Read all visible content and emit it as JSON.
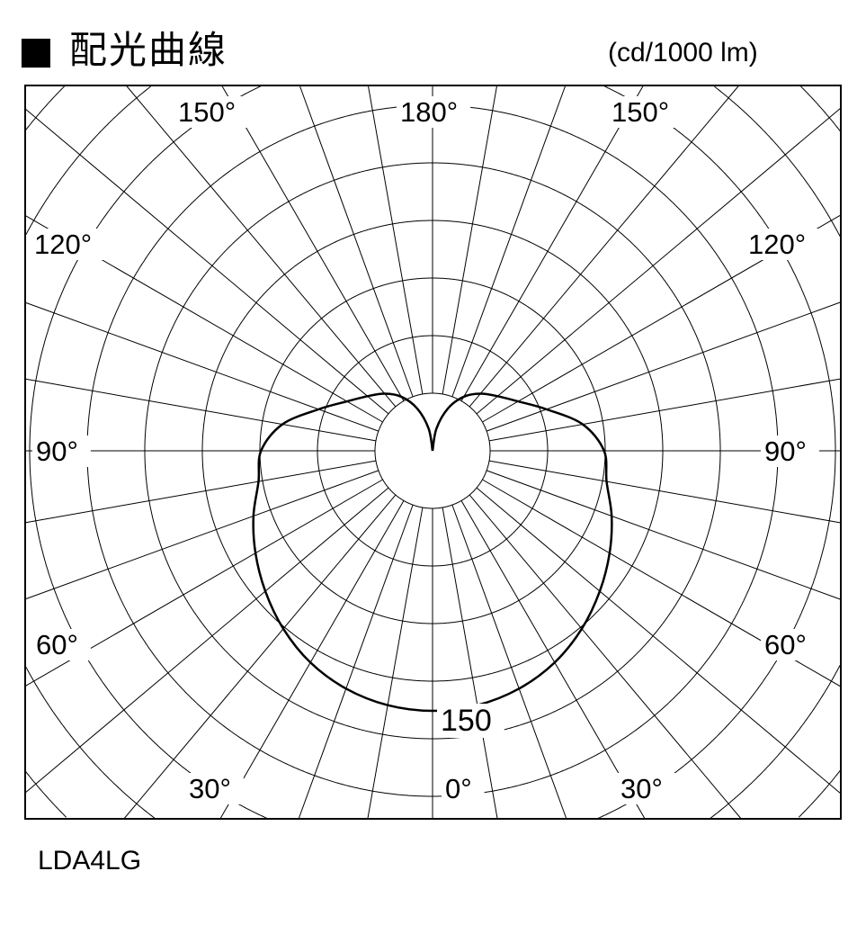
{
  "header": {
    "title": "■ 配光曲線",
    "unit": "(cd/1000 lm)"
  },
  "footer": {
    "model": "LDA4LG"
  },
  "chart_data": {
    "type": "polar",
    "title": "配光曲線",
    "unit": "cd/1000 lm",
    "angle_labels": {
      "top": [
        "150°",
        "180°",
        "150°"
      ],
      "upper_side": [
        "120°",
        "120°"
      ],
      "middle_side": [
        "90°",
        "90°"
      ],
      "lower_side": [
        "60°",
        "60°"
      ],
      "bottom": [
        "30°",
        "0°",
        "30°"
      ]
    },
    "radial_label": "150",
    "grid": true,
    "symmetric": true,
    "series": [
      {
        "angles_deg": [
          0,
          10,
          20,
          30,
          40,
          50,
          60,
          70,
          80,
          90,
          100,
          110,
          120,
          130,
          140,
          150,
          160,
          170,
          180
        ],
        "intensity": [
          150,
          149,
          146,
          141,
          134,
          126,
          118,
          110,
          102,
          99,
          88,
          70,
          57,
          49,
          43,
          36,
          26,
          13,
          0
        ]
      }
    ]
  }
}
